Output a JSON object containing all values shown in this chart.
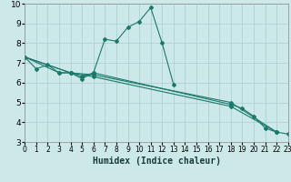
{
  "xlabel": "Humidex (Indice chaleur)",
  "bg_color": "#cce8e8",
  "grid_color": "#aacece",
  "line_color": "#1a7a6a",
  "xlim": [
    0,
    23
  ],
  "ylim": [
    3,
    10
  ],
  "xticks": [
    0,
    1,
    2,
    3,
    4,
    5,
    6,
    7,
    8,
    9,
    10,
    11,
    12,
    13,
    14,
    15,
    16,
    17,
    18,
    19,
    20,
    21,
    22,
    23
  ],
  "yticks": [
    3,
    4,
    5,
    6,
    7,
    8,
    9,
    10
  ],
  "series1_x": [
    0,
    1,
    2,
    3,
    4,
    5,
    6,
    7,
    8,
    9,
    10,
    11,
    12,
    13
  ],
  "series1_y": [
    7.3,
    6.7,
    6.9,
    6.5,
    6.5,
    6.2,
    6.5,
    8.2,
    8.1,
    8.8,
    9.1,
    9.8,
    8.0,
    5.9
  ],
  "series2_x": [
    0,
    3,
    4,
    5,
    6,
    18,
    19,
    20,
    21,
    22,
    23
  ],
  "series2_y": [
    7.3,
    6.5,
    6.5,
    6.3,
    6.5,
    4.9,
    4.7,
    4.3,
    3.7,
    3.5,
    3.4
  ],
  "series3_x": [
    0,
    4,
    6,
    18,
    22
  ],
  "series3_y": [
    7.3,
    6.5,
    6.4,
    5.0,
    3.5
  ],
  "series4_x": [
    0,
    4,
    6,
    18,
    22
  ],
  "series4_y": [
    7.3,
    6.5,
    6.3,
    4.8,
    3.5
  ]
}
